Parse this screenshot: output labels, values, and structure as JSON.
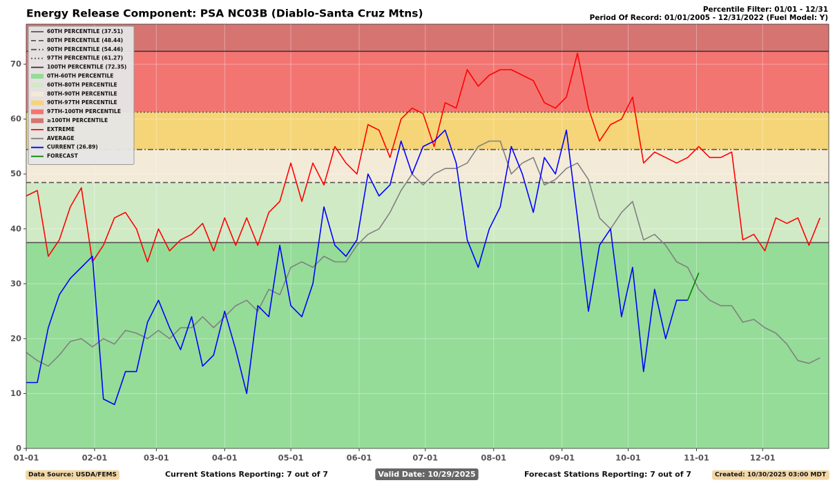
{
  "chart_data": {
    "type": "line",
    "title": "Energy Release Component: PSA NC03B (Diablo-Santa Cruz Mtns)",
    "subtitle": [
      "Percentile Filter: 01/01 - 12/31",
      "Period Of Record: 01/01/2005 - 12/31/2022 (Fuel Model: Y)"
    ],
    "footer": {
      "source": "Data Source: USDA/FEMS",
      "current_stations": "Current Stations Reporting: 7 out of 7",
      "valid": "Valid Date: 10/29/2025",
      "forecast_stations": "Forecast Stations Reporting: 7 out of 7",
      "created": "Created: 10/30/2025 03:00 MDT"
    },
    "xlim": [
      0,
      364
    ],
    "xticks": [
      {
        "value": 0,
        "label": "01-01"
      },
      {
        "value": 31,
        "label": "02-01"
      },
      {
        "value": 59,
        "label": "03-01"
      },
      {
        "value": 90,
        "label": "04-01"
      },
      {
        "value": 120,
        "label": "05-01"
      },
      {
        "value": 151,
        "label": "06-01"
      },
      {
        "value": 181,
        "label": "07-01"
      },
      {
        "value": 212,
        "label": "08-01"
      },
      {
        "value": 243,
        "label": "09-01"
      },
      {
        "value": 273,
        "label": "10-01"
      },
      {
        "value": 304,
        "label": "11-01"
      },
      {
        "value": 334,
        "label": "12-01"
      }
    ],
    "ylim": [
      0,
      77.3
    ],
    "yticks": [
      0,
      10,
      20,
      30,
      40,
      50,
      60,
      70
    ],
    "grid": true,
    "legend": "upper left",
    "thresholds": [
      {
        "name": "60TH PERCENTILE (37.51)",
        "value": 37.51,
        "color": "#555555",
        "dash": "solid"
      },
      {
        "name": "80TH PERCENTILE (48.44)",
        "value": 48.44,
        "color": "#555555",
        "dash": "dashed"
      },
      {
        "name": "90TH PERCENTILE (54.46)",
        "value": 54.46,
        "color": "#555555",
        "dash": "dashdot"
      },
      {
        "name": "97TH PERCENTILE (61.27)",
        "value": 61.27,
        "color": "#555555",
        "dash": "dotted"
      },
      {
        "name": "100TH PERCENTILE (72.35)",
        "value": 72.35,
        "color": "#333333",
        "dash": "solid"
      }
    ],
    "bands": [
      {
        "name": "0TH-60TH PERCENTILE",
        "color": "#95dc98"
      },
      {
        "name": "60TH-80TH PERCENTILE",
        "color": "#d1eac6"
      },
      {
        "name": "80TH-90TH PERCENTILE",
        "color": "#f3ebd8"
      },
      {
        "name": "90TH-97TH PERCENTILE",
        "color": "#f5d577"
      },
      {
        "name": "97TH-100TH PERCENTILE",
        "color": "#f37572"
      },
      {
        "name": "≥100TH PERCENTILE",
        "color": "#d67471"
      }
    ],
    "x": [
      0,
      5,
      10,
      15,
      20,
      25,
      30,
      35,
      40,
      45,
      50,
      55,
      60,
      65,
      70,
      75,
      80,
      85,
      90,
      95,
      100,
      105,
      110,
      115,
      120,
      125,
      130,
      135,
      140,
      145,
      150,
      155,
      160,
      165,
      170,
      175,
      180,
      185,
      190,
      195,
      200,
      205,
      210,
      215,
      220,
      225,
      230,
      235,
      240,
      245,
      250,
      255,
      260,
      265,
      270,
      275,
      280,
      285,
      290,
      295,
      300,
      305,
      310,
      315,
      320,
      325,
      330,
      335,
      340,
      345,
      350,
      355,
      360
    ],
    "series": [
      {
        "name": "EXTREME",
        "color": "#ff0000",
        "values": [
          46,
          47,
          35,
          38,
          44,
          47.5,
          34,
          37,
          42,
          43,
          40,
          34,
          40,
          36,
          38,
          39,
          41,
          36,
          42,
          37,
          42,
          37,
          43,
          45,
          52,
          45,
          52,
          48,
          55,
          52,
          50,
          59,
          58,
          53,
          60,
          62,
          61,
          55,
          63,
          62,
          69,
          66,
          68,
          69,
          69,
          68,
          67,
          63,
          62,
          64,
          72,
          62,
          56,
          59,
          60,
          64,
          52,
          54,
          53,
          52,
          53,
          55,
          53,
          53,
          54,
          38,
          39,
          36,
          42,
          41,
          42,
          37,
          42
        ]
      },
      {
        "name": "AVERAGE",
        "color": "#808080",
        "values": [
          17.5,
          16,
          15,
          17,
          19.5,
          20,
          18.5,
          20,
          19,
          21.5,
          21,
          20,
          21.5,
          20,
          22,
          22,
          24,
          22,
          24,
          26,
          27,
          25,
          29,
          28,
          33,
          34,
          33,
          35,
          34,
          34,
          37,
          39,
          40,
          43,
          47,
          50,
          48,
          50,
          51,
          51,
          52,
          55,
          56,
          56,
          50,
          52,
          53,
          48,
          49,
          51,
          52,
          49,
          42,
          40,
          43,
          45,
          38,
          39,
          37,
          34,
          33,
          29,
          27,
          26,
          26,
          23,
          23.5,
          22,
          21,
          19,
          16,
          15.5,
          16.5
        ]
      },
      {
        "name": "CURRENT (26.89)",
        "color": "#0000ff",
        "values": [
          12,
          12,
          22,
          28,
          31,
          33,
          35,
          9,
          8,
          14,
          14,
          23,
          27,
          22,
          18,
          24,
          15,
          17,
          25,
          18,
          10,
          26,
          24,
          37,
          26,
          24,
          30,
          44,
          37,
          35,
          38,
          50,
          46,
          48,
          56,
          50,
          55,
          56,
          58,
          52,
          38,
          33,
          40,
          44,
          55,
          50,
          43,
          53,
          50,
          58,
          42,
          25,
          37,
          40,
          24,
          33,
          14,
          29,
          20,
          27,
          27,
          null,
          null,
          null,
          null,
          null,
          null,
          null,
          null,
          null,
          null,
          null,
          null
        ]
      },
      {
        "name": "FORECAST",
        "color": "#008000",
        "values": [
          null,
          null,
          null,
          null,
          null,
          null,
          null,
          null,
          null,
          null,
          null,
          null,
          null,
          null,
          null,
          null,
          null,
          null,
          null,
          null,
          null,
          null,
          null,
          null,
          null,
          null,
          null,
          null,
          null,
          null,
          null,
          null,
          null,
          null,
          null,
          null,
          null,
          null,
          null,
          null,
          null,
          null,
          null,
          null,
          null,
          null,
          null,
          null,
          null,
          null,
          null,
          null,
          null,
          null,
          null,
          null,
          null,
          null,
          null,
          null,
          27,
          32,
          null,
          null,
          null,
          null,
          null,
          null,
          null,
          null,
          null,
          null,
          null
        ]
      }
    ]
  }
}
